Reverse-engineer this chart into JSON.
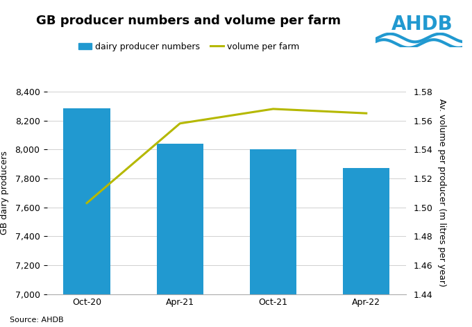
{
  "title": "GB producer numbers and volume per farm",
  "categories": [
    "Oct-20",
    "Apr-21",
    "Oct-21",
    "Apr-22"
  ],
  "bar_values": [
    8285,
    8040,
    8000,
    7870
  ],
  "line_values": [
    1.503,
    1.558,
    1.568,
    1.565
  ],
  "bar_color": "#2199d0",
  "line_color": "#b5b800",
  "ylabel_left": "GB dairy producers",
  "ylabel_right": "Av. volume per producer (m litres per year)",
  "ylim_left": [
    7000,
    8400
  ],
  "ylim_right": [
    1.44,
    1.58
  ],
  "yticks_left": [
    7000,
    7200,
    7400,
    7600,
    7800,
    8000,
    8200,
    8400
  ],
  "yticks_right": [
    1.44,
    1.46,
    1.48,
    1.5,
    1.52,
    1.54,
    1.56,
    1.58
  ],
  "legend_bar_label": "dairy producer numbers",
  "legend_line_label": "volume per farm",
  "source_text": "Source: AHDB",
  "background_color": "#ffffff",
  "ahdb_text": "AHDB",
  "ahdb_color": "#2199d0",
  "grid_color": "#d0d0d0",
  "title_fontsize": 13,
  "legend_fontsize": 9,
  "tick_fontsize": 9,
  "ylabel_fontsize": 9
}
